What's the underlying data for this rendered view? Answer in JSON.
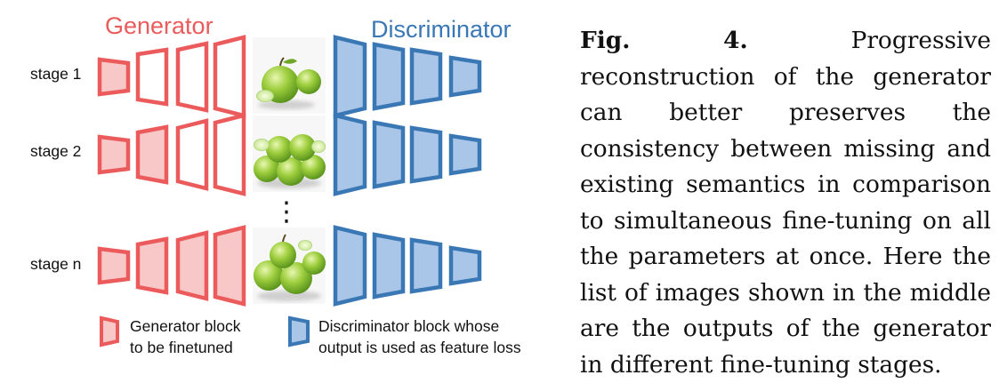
{
  "figure": {
    "generator_title": "Generator",
    "discriminator_title": "Discriminator",
    "colors": {
      "generator_stroke": "#ec5b5b",
      "generator_fill_empty": "#ffffff",
      "generator_fill_tuned": "#f8c8c8",
      "discriminator_stroke": "#3a77b5",
      "discriminator_fill": "#a9c5e7"
    },
    "stages": [
      {
        "label": "stage 1",
        "generator_blocks_finetuned": [
          true,
          false,
          false,
          false
        ],
        "image": "single-green-apple-image"
      },
      {
        "label": "stage 2",
        "generator_blocks_finetuned": [
          true,
          true,
          false,
          false
        ],
        "image": "green-apple-pile-image"
      },
      {
        "label": "stage n",
        "generator_blocks_finetuned": [
          true,
          true,
          true,
          true
        ],
        "image": "green-apples-group-image"
      }
    ],
    "ellipsis": "⋮",
    "legend": {
      "generator": [
        "Generator block",
        "to be finetuned"
      ],
      "discriminator": [
        "Discriminator block whose",
        "output is used as feature loss"
      ]
    }
  },
  "caption": {
    "label": "Fig. 4.",
    "text": "Progressive reconstruction of the generator can better preserves the consistency between missing and existing semantics in comparison to simultaneous fine-tuning on all the parameters at once. Here the list of images shown in the middle are the outputs of the generator in different fine-tuning stages."
  }
}
